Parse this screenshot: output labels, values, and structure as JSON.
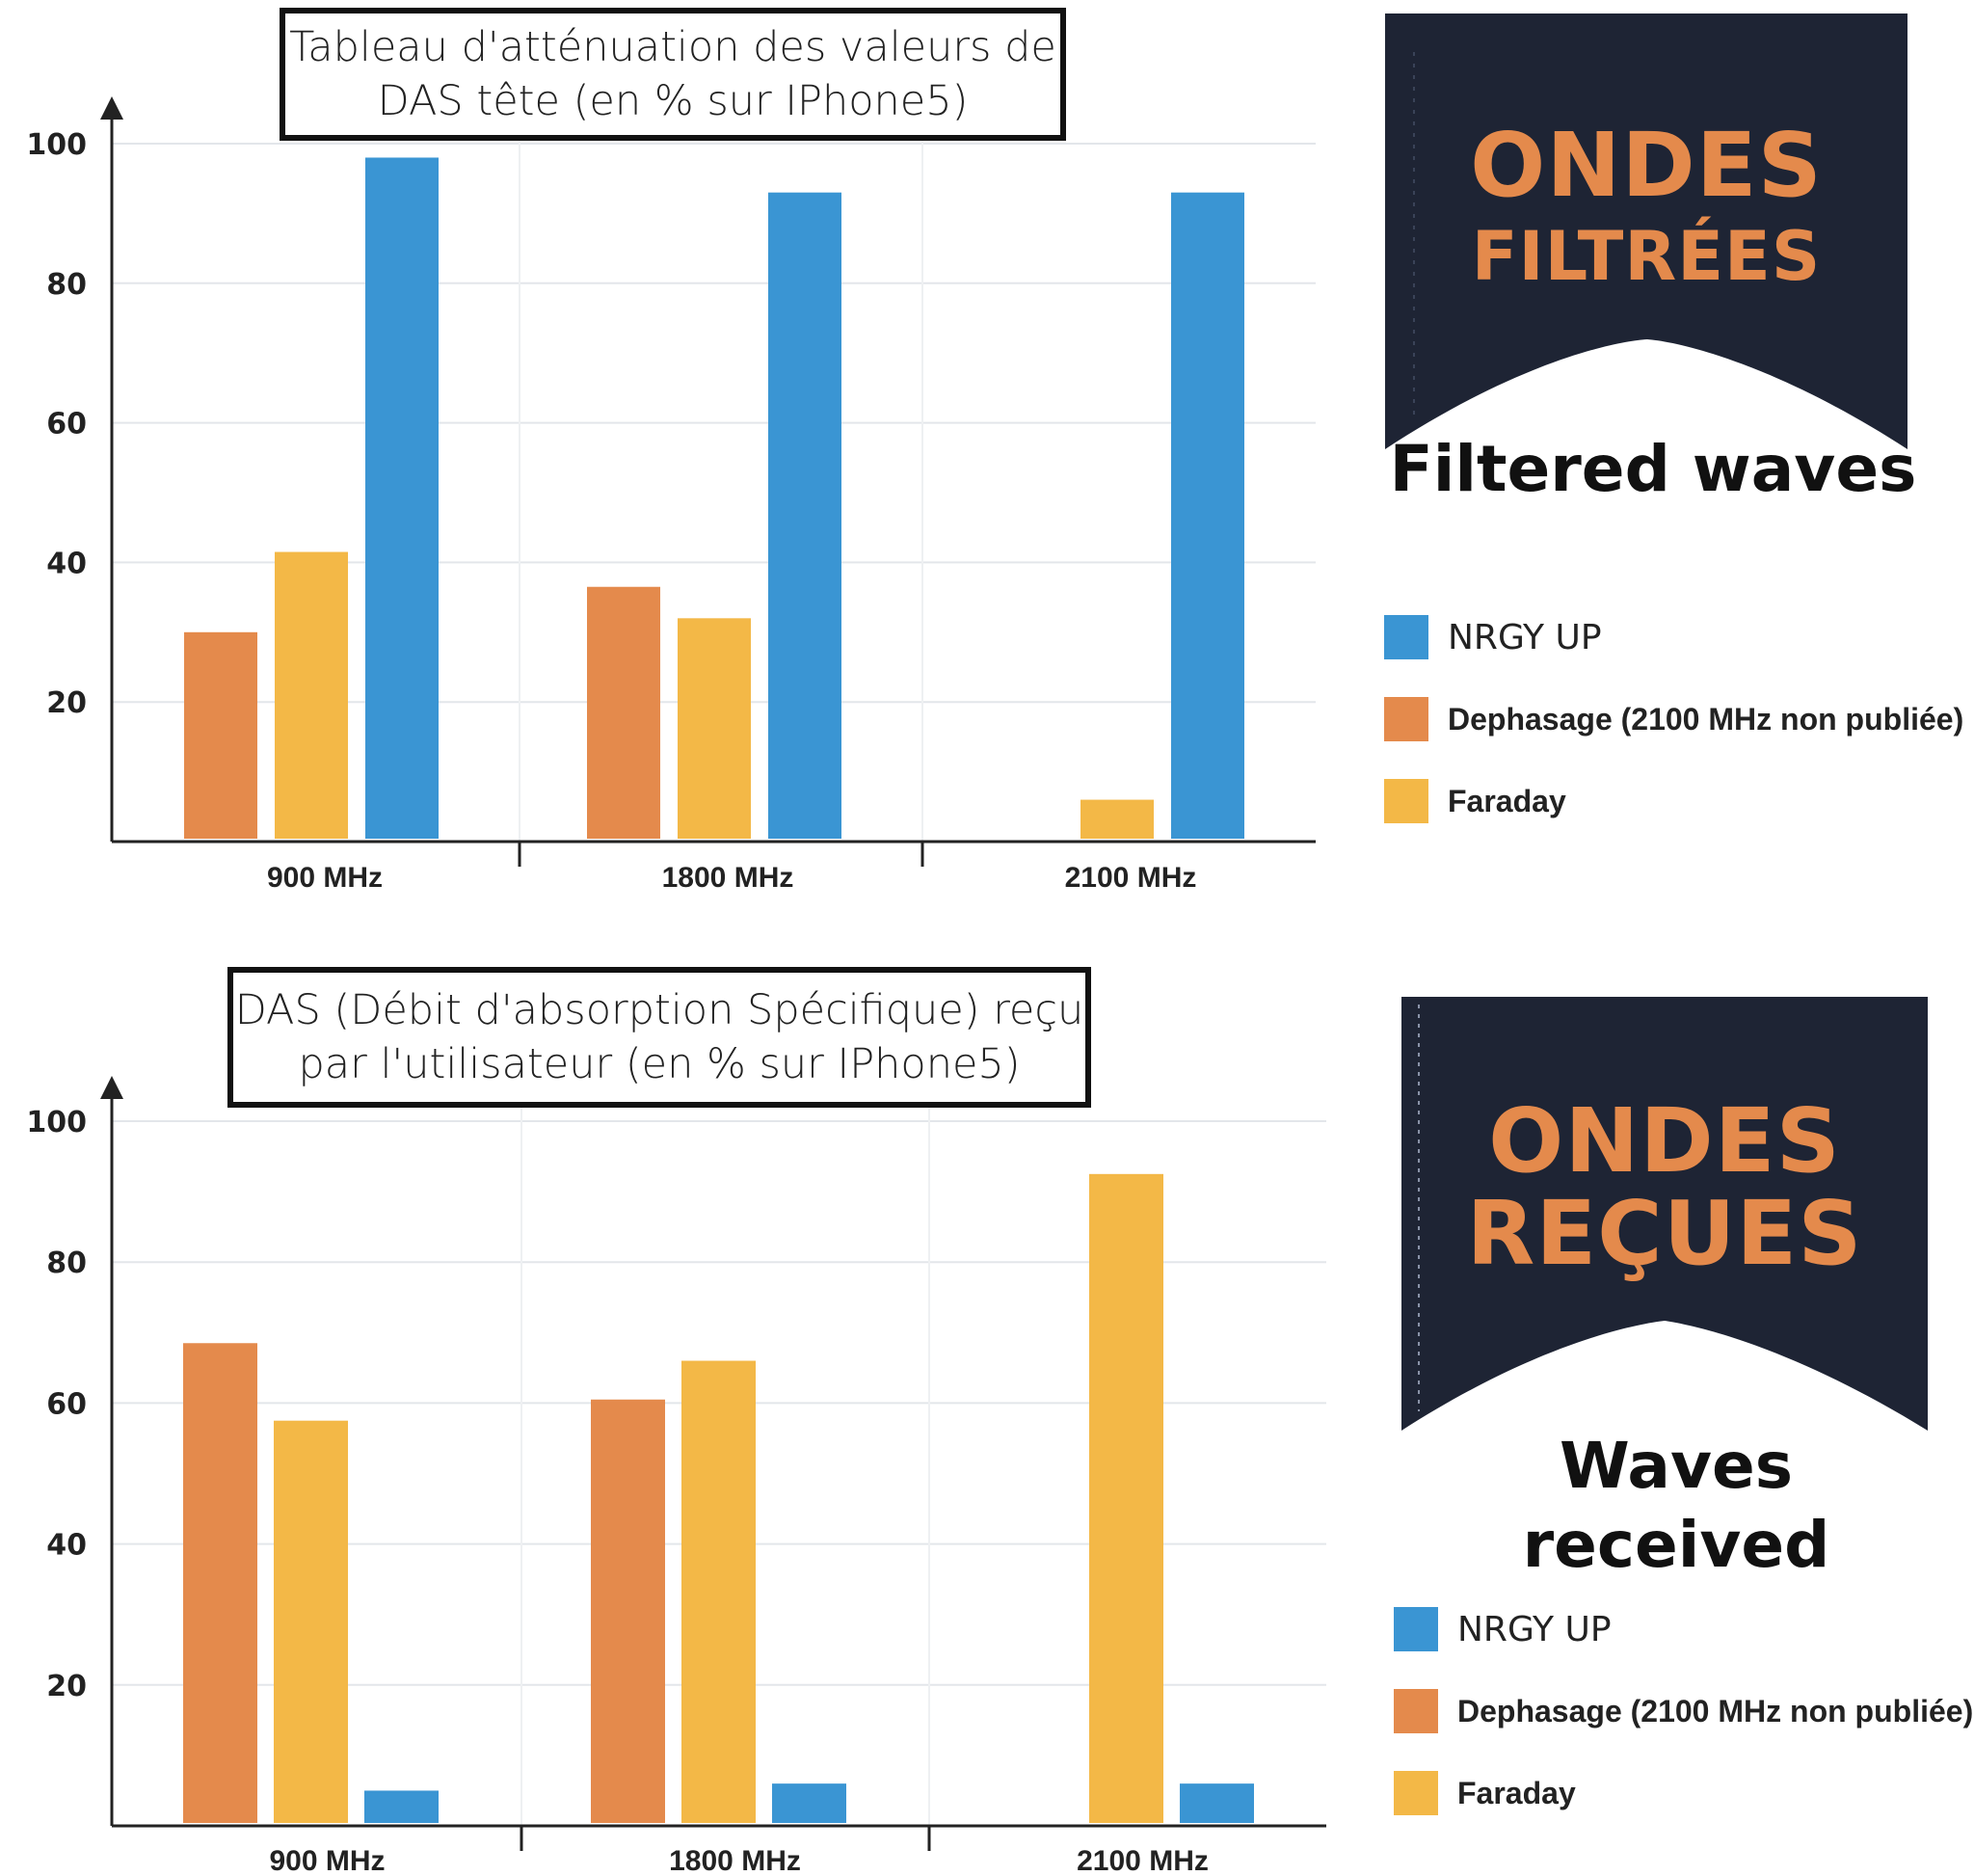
{
  "colors": {
    "nrgy_up": "#3a95d3",
    "dephasage": "#e48a4c",
    "faraday": "#f3b847",
    "badge_bg": "#1e2434",
    "badge_text": "#e48a4c"
  },
  "chart_data": [
    {
      "type": "bar",
      "title_lines": [
        "Tableau d'atténuation des valeurs de",
        "DAS tête (en % sur IPhone5)"
      ],
      "categories": [
        "900 MHz",
        "1800 MHz",
        "2100 MHz"
      ],
      "yticks": [
        "100",
        "80",
        "60",
        "40",
        "20"
      ],
      "ylim": [
        0,
        100
      ],
      "grid": true,
      "series": [
        {
          "name": "Dephasage (2100 MHz non publiée)",
          "color_key": "dephasage",
          "values": [
            30,
            36.5,
            null
          ]
        },
        {
          "name": "Faraday",
          "color_key": "faraday",
          "values": [
            41.5,
            32,
            6
          ]
        },
        {
          "name": "NRGY UP",
          "color_key": "nrgy_up",
          "values": [
            98,
            93,
            93
          ]
        }
      ],
      "legend": {
        "placement": "right",
        "order": [
          "NRGY UP",
          "Dephasage (2100 MHz non publiée)",
          "Faraday"
        ]
      },
      "badge": {
        "line1": "ONDES",
        "line2": "FILTRÉES",
        "caption": "Filtered waves"
      }
    },
    {
      "type": "bar",
      "title_lines": [
        "DAS (Débit d'absorption Spécifique) reçu",
        "par l'utilisateur (en % sur IPhone5)"
      ],
      "categories": [
        "900 MHz",
        "1800 MHz",
        "2100 MHz"
      ],
      "yticks": [
        "100",
        "80",
        "60",
        "40",
        "20"
      ],
      "ylim": [
        0,
        100
      ],
      "grid": true,
      "series": [
        {
          "name": "Dephasage (2100 MHz non publiée)",
          "color_key": "dephasage",
          "values": [
            68.5,
            60.5,
            null
          ]
        },
        {
          "name": "Faraday",
          "color_key": "faraday",
          "values": [
            57.5,
            66,
            92.5
          ]
        },
        {
          "name": "NRGY UP",
          "color_key": "nrgy_up",
          "values": [
            5,
            6,
            6
          ]
        }
      ],
      "legend": {
        "placement": "right",
        "order": [
          "NRGY UP",
          "Dephasage (2100 MHz non publiée)",
          "Faraday"
        ]
      },
      "badge": {
        "line1": "ONDES",
        "line2": "REÇUES",
        "caption": "Waves received"
      }
    }
  ]
}
